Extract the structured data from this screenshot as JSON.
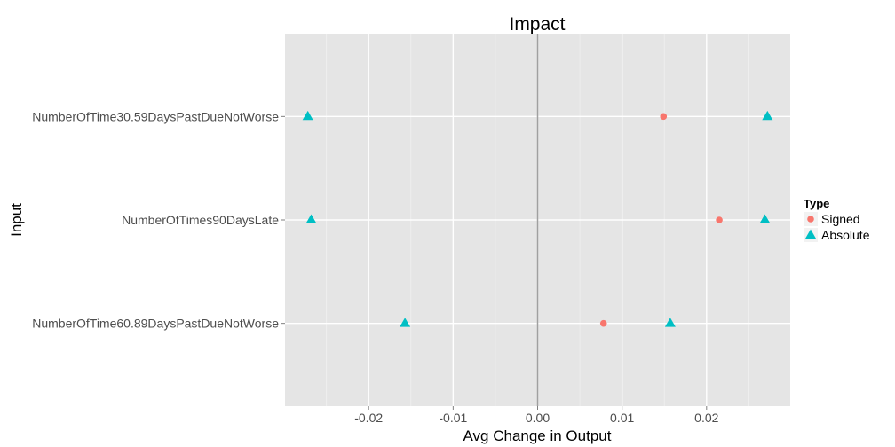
{
  "chart_data": {
    "type": "scatter",
    "title": "Impact",
    "xlabel": "Avg Change in Output",
    "ylabel": "Input",
    "xlim": [
      -0.0299,
      0.0299
    ],
    "x_ticks": [
      -0.02,
      -0.01,
      0.0,
      0.01,
      0.02
    ],
    "x_tick_labels": [
      "-0.02",
      "-0.01",
      "0.00",
      "0.01",
      "0.02"
    ],
    "categories": [
      "NumberOfTime30.59DaysPastDueNotWorse",
      "NumberOfTimes90DaysLate",
      "NumberOfTime60.89DaysPastDueNotWorse"
    ],
    "reference_line_x": 0,
    "grid": true,
    "legend": {
      "title": "Type",
      "position": "right"
    },
    "series": [
      {
        "name": "Signed",
        "marker": "circle",
        "color": "#f8766d",
        "points": [
          {
            "category": "NumberOfTime30.59DaysPastDueNotWorse",
            "x": 0.0149
          },
          {
            "category": "NumberOfTimes90DaysLate",
            "x": 0.0215
          },
          {
            "category": "NumberOfTime60.89DaysPastDueNotWorse",
            "x": 0.0078
          }
        ]
      },
      {
        "name": "Absolute",
        "marker": "triangle",
        "color": "#00bfc4",
        "points": [
          {
            "category": "NumberOfTime30.59DaysPastDueNotWorse",
            "x": -0.0272
          },
          {
            "category": "NumberOfTime30.59DaysPastDueNotWorse",
            "x": 0.0272
          },
          {
            "category": "NumberOfTimes90DaysLate",
            "x": -0.0268
          },
          {
            "category": "NumberOfTimes90DaysLate",
            "x": 0.0269
          },
          {
            "category": "NumberOfTime60.89DaysPastDueNotWorse",
            "x": -0.0157
          },
          {
            "category": "NumberOfTime60.89DaysPastDueNotWorse",
            "x": 0.0157
          }
        ]
      }
    ]
  }
}
